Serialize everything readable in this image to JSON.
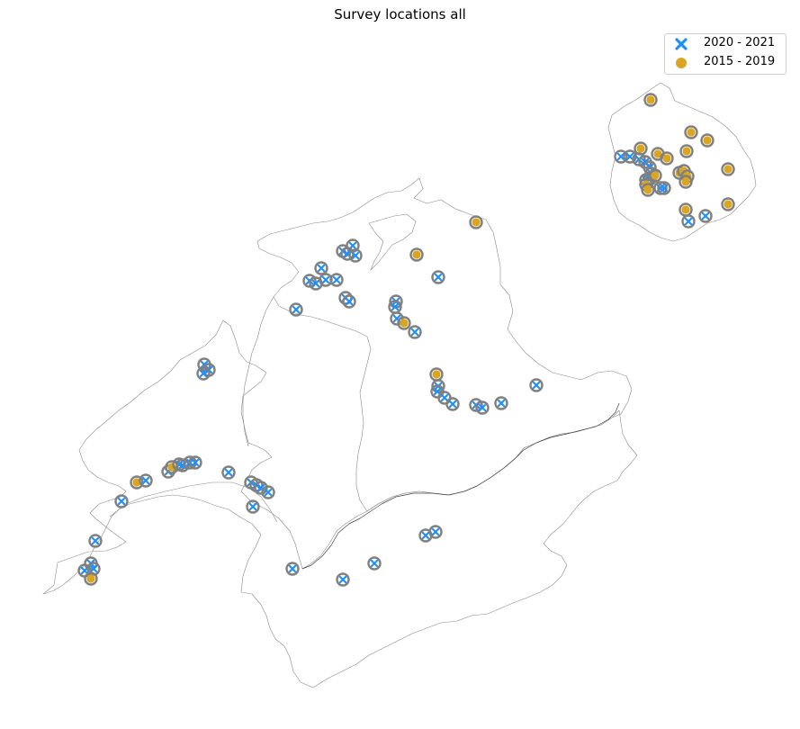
{
  "title": "Survey locations all",
  "legend": {
    "placement": "top-right",
    "items": [
      {
        "label": "2020 - 2021",
        "marker": "x-marker-icon",
        "color": "#1e90ff"
      },
      {
        "label": "2015 - 2019",
        "marker": "circle-marker-icon",
        "color": "#daa520"
      }
    ]
  },
  "colors": {
    "border": "#808080",
    "halo": "#808080",
    "marker_2020_2021": "#1e90ff",
    "marker_2015_2019": "#daa520"
  }
}
